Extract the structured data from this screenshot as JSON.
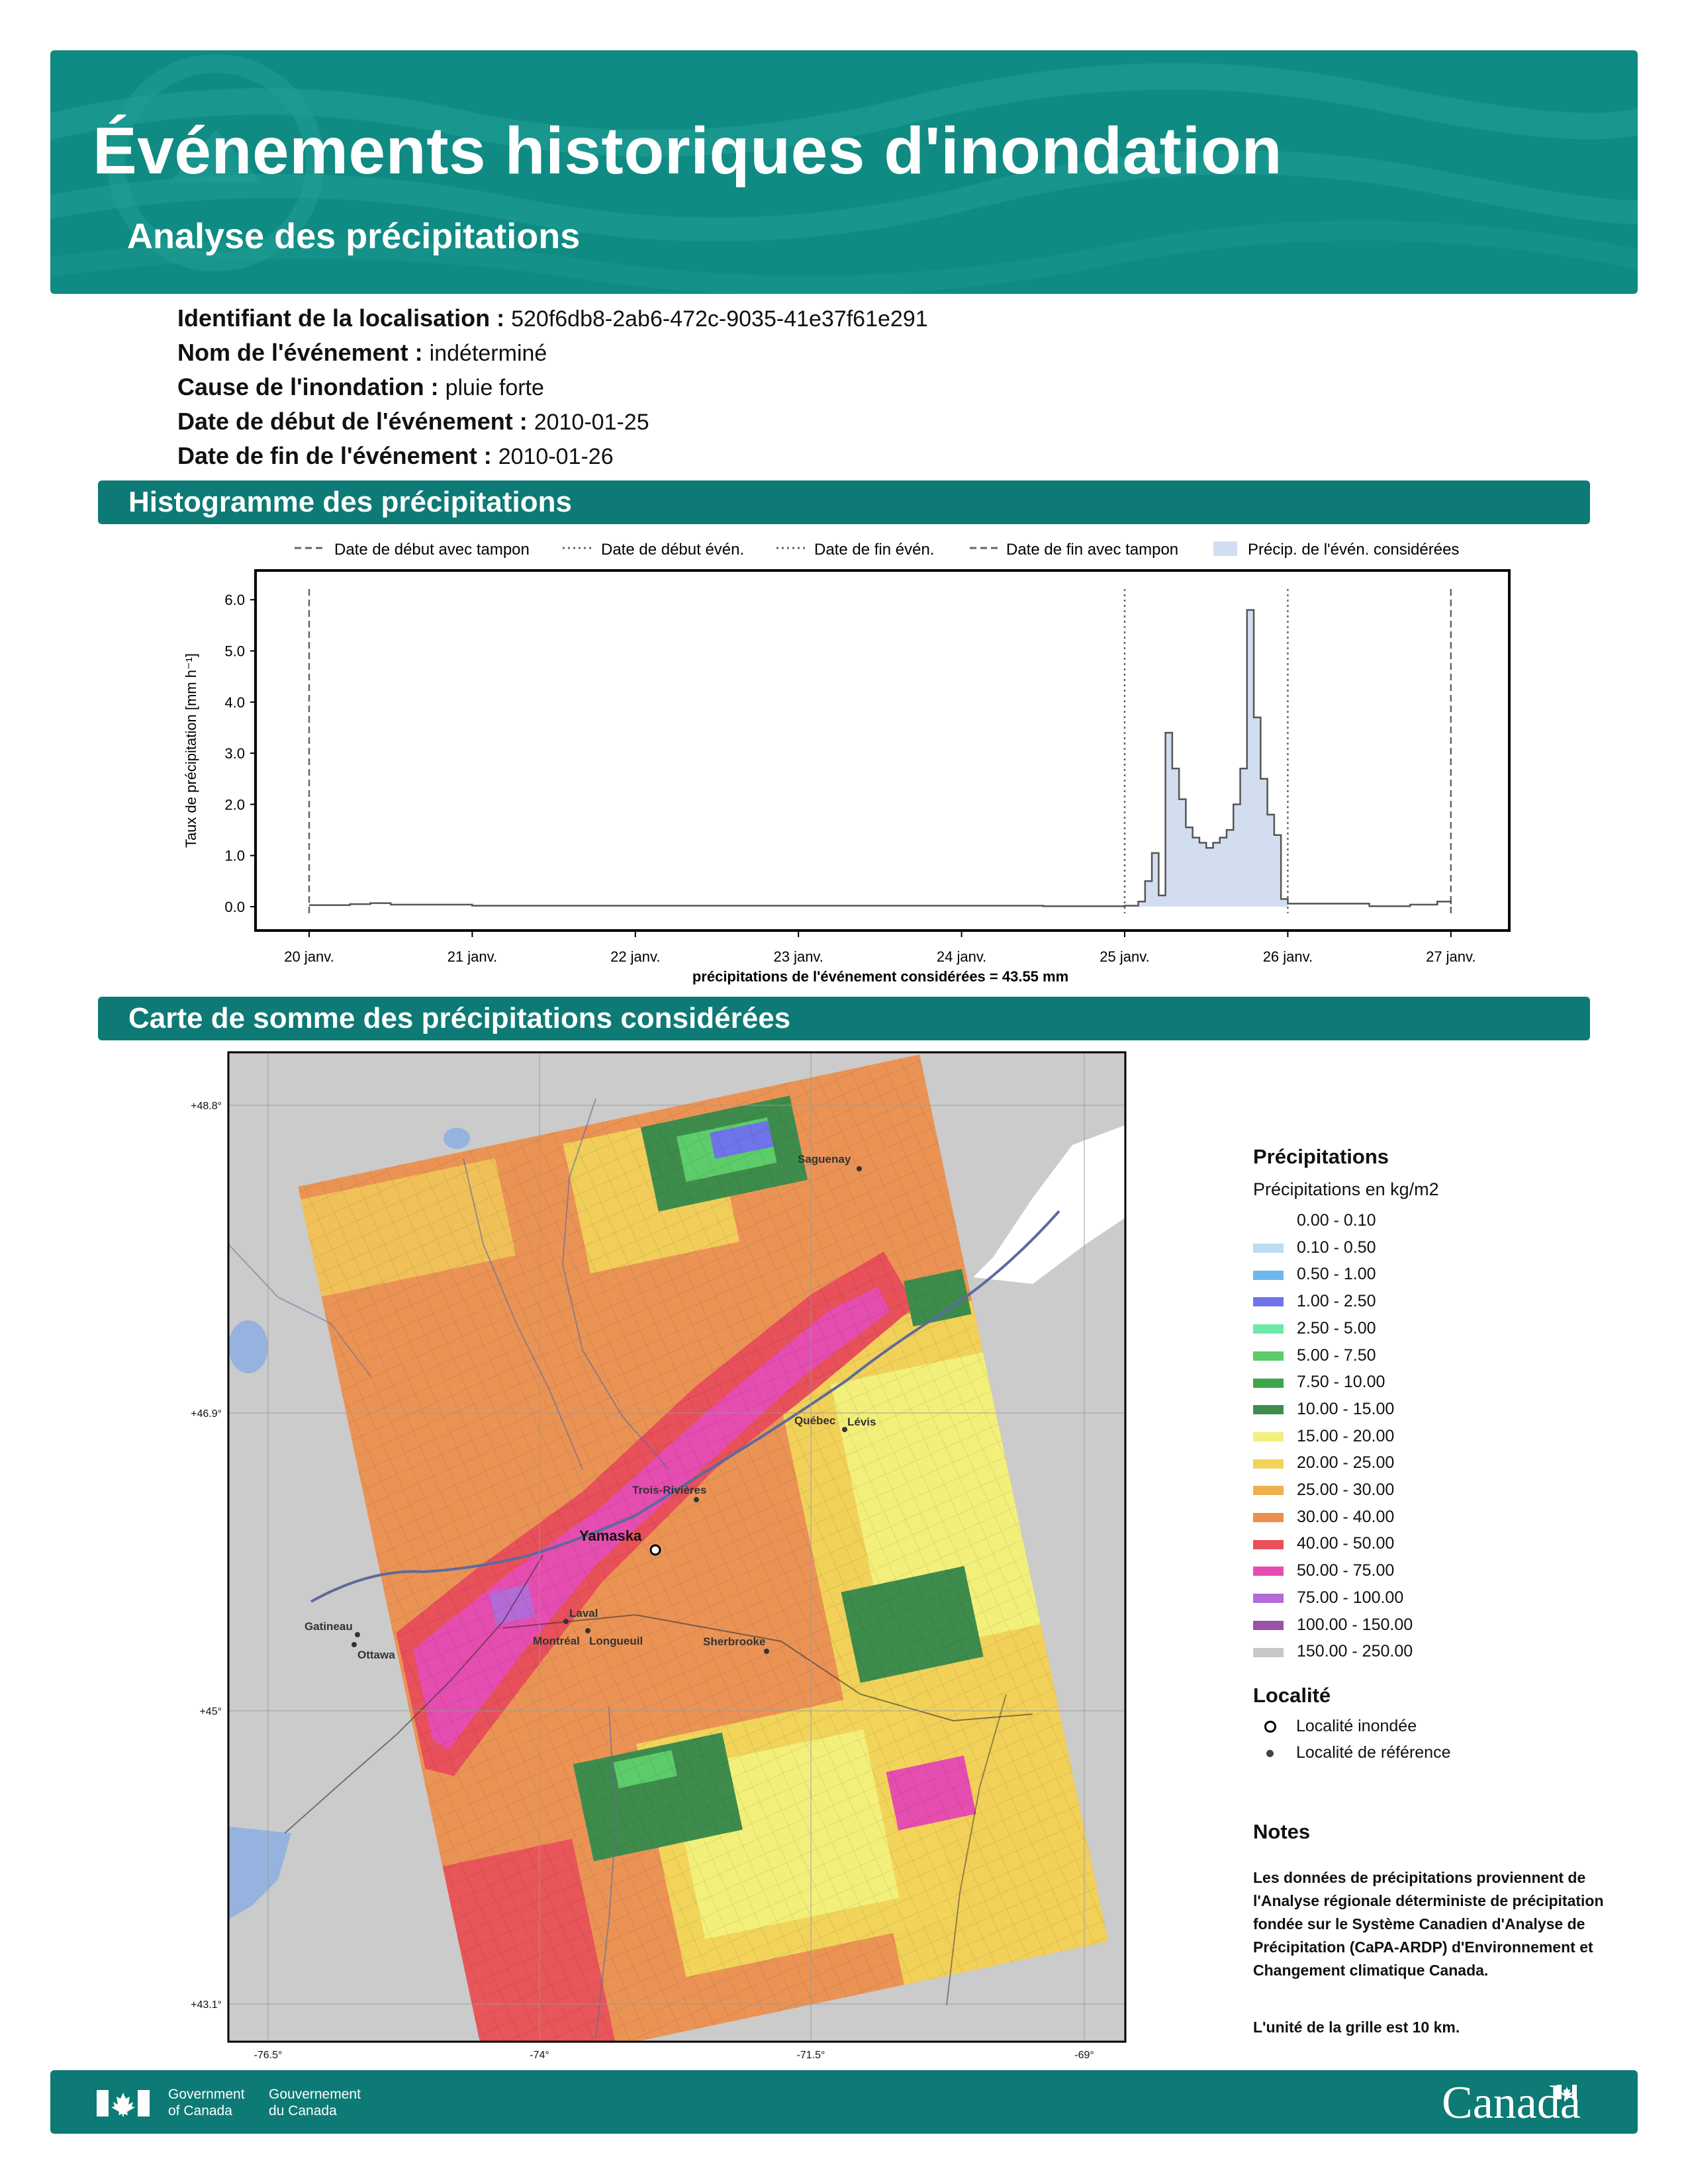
{
  "header": {
    "title": "Événements historiques d'inondation",
    "subtitle": "Analyse des précipitations"
  },
  "meta": [
    {
      "label": "Identifiant de la localisation :",
      "value": "520f6db8-2ab6-472c-9035-41e37f61e291"
    },
    {
      "label": "Nom de l'événement :",
      "value": "indéterminé"
    },
    {
      "label": "Cause de l'inondation :",
      "value": "pluie forte"
    },
    {
      "label": "Date de début de l'événement :",
      "value": "2010-01-25"
    },
    {
      "label": "Date de fin de l'événement :",
      "value": "2010-01-26"
    }
  ],
  "sections": {
    "histogram": "Histogramme des précipitations",
    "map": "Carte de somme des précipitations considérées"
  },
  "chart_data": {
    "type": "area",
    "ylabel": "Taux de précipitation [mm h⁻¹]",
    "xlabel": "précipitations de l'événement considérées = 43.55 mm",
    "ylim": [
      0,
      6.2
    ],
    "xlim": [
      "2010-01-19T20:00",
      "2010-01-27T03:00"
    ],
    "y_ticks": [
      "0.0",
      "1.0",
      "2.0",
      "3.0",
      "4.0",
      "5.0",
      "6.0"
    ],
    "x_ticks": [
      "20 janv.",
      "21 janv.",
      "22 janv.",
      "23 janv.",
      "24 janv.",
      "25 janv.",
      "26 janv.",
      "27 janv."
    ],
    "legend": [
      {
        "label": "Date de début avec tampon",
        "style": "dashed"
      },
      {
        "label": "Date de début évén.",
        "style": "dotted"
      },
      {
        "label": "Date de fin évén.",
        "style": "dotted"
      },
      {
        "label": "Date de fin avec tampon",
        "style": "dashed"
      },
      {
        "label": "Précip. de l'évén. considérées",
        "style": "fill"
      }
    ],
    "vlines": [
      {
        "x": "2010-01-20T00:00",
        "style": "dashed"
      },
      {
        "x": "2010-01-25T00:00",
        "style": "dotted"
      },
      {
        "x": "2010-01-26T00:00",
        "style": "dotted"
      },
      {
        "x": "2010-01-27T00:00",
        "style": "dashed"
      }
    ],
    "series": [
      {
        "values": [
          [
            "2010-01-20T00:00",
            0.03
          ],
          [
            "2010-01-20T06:00",
            0.05
          ],
          [
            "2010-01-20T09:00",
            0.07
          ],
          [
            "2010-01-20T12:00",
            0.04
          ],
          [
            "2010-01-21T00:00",
            0.02
          ],
          [
            "2010-01-24T12:00",
            0.01
          ],
          [
            "2010-01-25T00:00",
            0.02
          ],
          [
            "2010-01-25T02:00",
            0.1
          ],
          [
            "2010-01-25T03:00",
            0.5
          ],
          [
            "2010-01-25T04:00",
            1.05
          ],
          [
            "2010-01-25T05:00",
            0.22
          ],
          [
            "2010-01-25T06:00",
            3.4
          ],
          [
            "2010-01-25T07:00",
            2.7
          ],
          [
            "2010-01-25T08:00",
            2.1
          ],
          [
            "2010-01-25T09:00",
            1.55
          ],
          [
            "2010-01-25T10:00",
            1.35
          ],
          [
            "2010-01-25T11:00",
            1.25
          ],
          [
            "2010-01-25T12:00",
            1.15
          ],
          [
            "2010-01-25T13:00",
            1.25
          ],
          [
            "2010-01-25T14:00",
            1.35
          ],
          [
            "2010-01-25T15:00",
            1.5
          ],
          [
            "2010-01-25T16:00",
            2.0
          ],
          [
            "2010-01-25T17:00",
            2.7
          ],
          [
            "2010-01-25T18:00",
            5.8
          ],
          [
            "2010-01-25T19:00",
            3.7
          ],
          [
            "2010-01-25T20:00",
            2.5
          ],
          [
            "2010-01-25T21:00",
            1.8
          ],
          [
            "2010-01-25T22:00",
            1.4
          ],
          [
            "2010-01-25T23:00",
            0.15
          ],
          [
            "2010-01-26T00:00",
            0.06
          ],
          [
            "2010-01-26T12:00",
            0.01
          ],
          [
            "2010-01-26T18:00",
            0.04
          ],
          [
            "2010-01-26T22:00",
            0.1
          ],
          [
            "2010-01-27T00:00",
            0.05
          ]
        ]
      }
    ]
  },
  "map": {
    "lat_ticks": [
      "+48.8°",
      "+46.9°",
      "+45°",
      "+43.1°"
    ],
    "lon_ticks": [
      "-76.5°",
      "-74°",
      "-71.5°",
      "-69°"
    ],
    "cities": [
      {
        "name": "Saguenay",
        "type": "reference"
      },
      {
        "name": "Québec",
        "type": "reference"
      },
      {
        "name": "Lévis",
        "type": "reference"
      },
      {
        "name": "Trois-Rivières",
        "type": "reference"
      },
      {
        "name": "Yamaska",
        "type": "flooded"
      },
      {
        "name": "Gatineau",
        "type": "reference"
      },
      {
        "name": "Ottawa",
        "type": "reference"
      },
      {
        "name": "Laval",
        "type": "reference"
      },
      {
        "name": "Montréal",
        "type": "reference"
      },
      {
        "name": "Longueuil",
        "type": "reference"
      },
      {
        "name": "Sherbrooke",
        "type": "reference"
      }
    ]
  },
  "precip_legend": {
    "title": "Précipitations",
    "subtitle": "Précipitations en kg/m2",
    "classes": [
      {
        "label": "0.00 - 0.10",
        "color": "#ffffff"
      },
      {
        "label": "0.10 - 0.50",
        "color": "#bcdcf2"
      },
      {
        "label": "0.50 - 1.00",
        "color": "#6cb8ee"
      },
      {
        "label": "1.00 - 2.50",
        "color": "#6f74ea"
      },
      {
        "label": "2.50 - 5.00",
        "color": "#6ee8a6"
      },
      {
        "label": "5.00 - 7.50",
        "color": "#5dcc6a"
      },
      {
        "label": "7.50 - 10.00",
        "color": "#3fa54a"
      },
      {
        "label": "10.00 - 15.00",
        "color": "#3e8c4c"
      },
      {
        "label": "15.00 - 20.00",
        "color": "#f2f07a"
      },
      {
        "label": "20.00 - 25.00",
        "color": "#f2d45a"
      },
      {
        "label": "25.00 - 30.00",
        "color": "#f0b04e"
      },
      {
        "label": "30.00 - 40.00",
        "color": "#ec8f4e"
      },
      {
        "label": "40.00 - 50.00",
        "color": "#e8505a"
      },
      {
        "label": "50.00 - 75.00",
        "color": "#e64db0"
      },
      {
        "label": "75.00 - 100.00",
        "color": "#b46bd6"
      },
      {
        "label": "100.00 - 150.00",
        "color": "#9a52a8"
      },
      {
        "label": "150.00 - 250.00",
        "color": "#c8c8c8"
      }
    ]
  },
  "locality_legend": {
    "title": "Localité",
    "items": [
      "Localité inondée",
      "Localité de référence"
    ]
  },
  "notes": {
    "title": "Notes",
    "text": "Les données de précipitations proviennent de l'Analyse régionale déterministe de précipitation fondée sur le Système Canadien d'Analyse de Précipitation (CaPA-ARDP) d'Environnement et Changement climatique Canada.",
    "grid": "L'unité de la grille est 10 km."
  },
  "footer": {
    "gov_en_1": "Government",
    "gov_en_2": "of Canada",
    "gov_fr_1": "Gouvernement",
    "gov_fr_2": "du Canada",
    "wordmark": "Canada"
  },
  "colors": {
    "brand": "#0d7a75",
    "banner": "#0f8b83"
  }
}
